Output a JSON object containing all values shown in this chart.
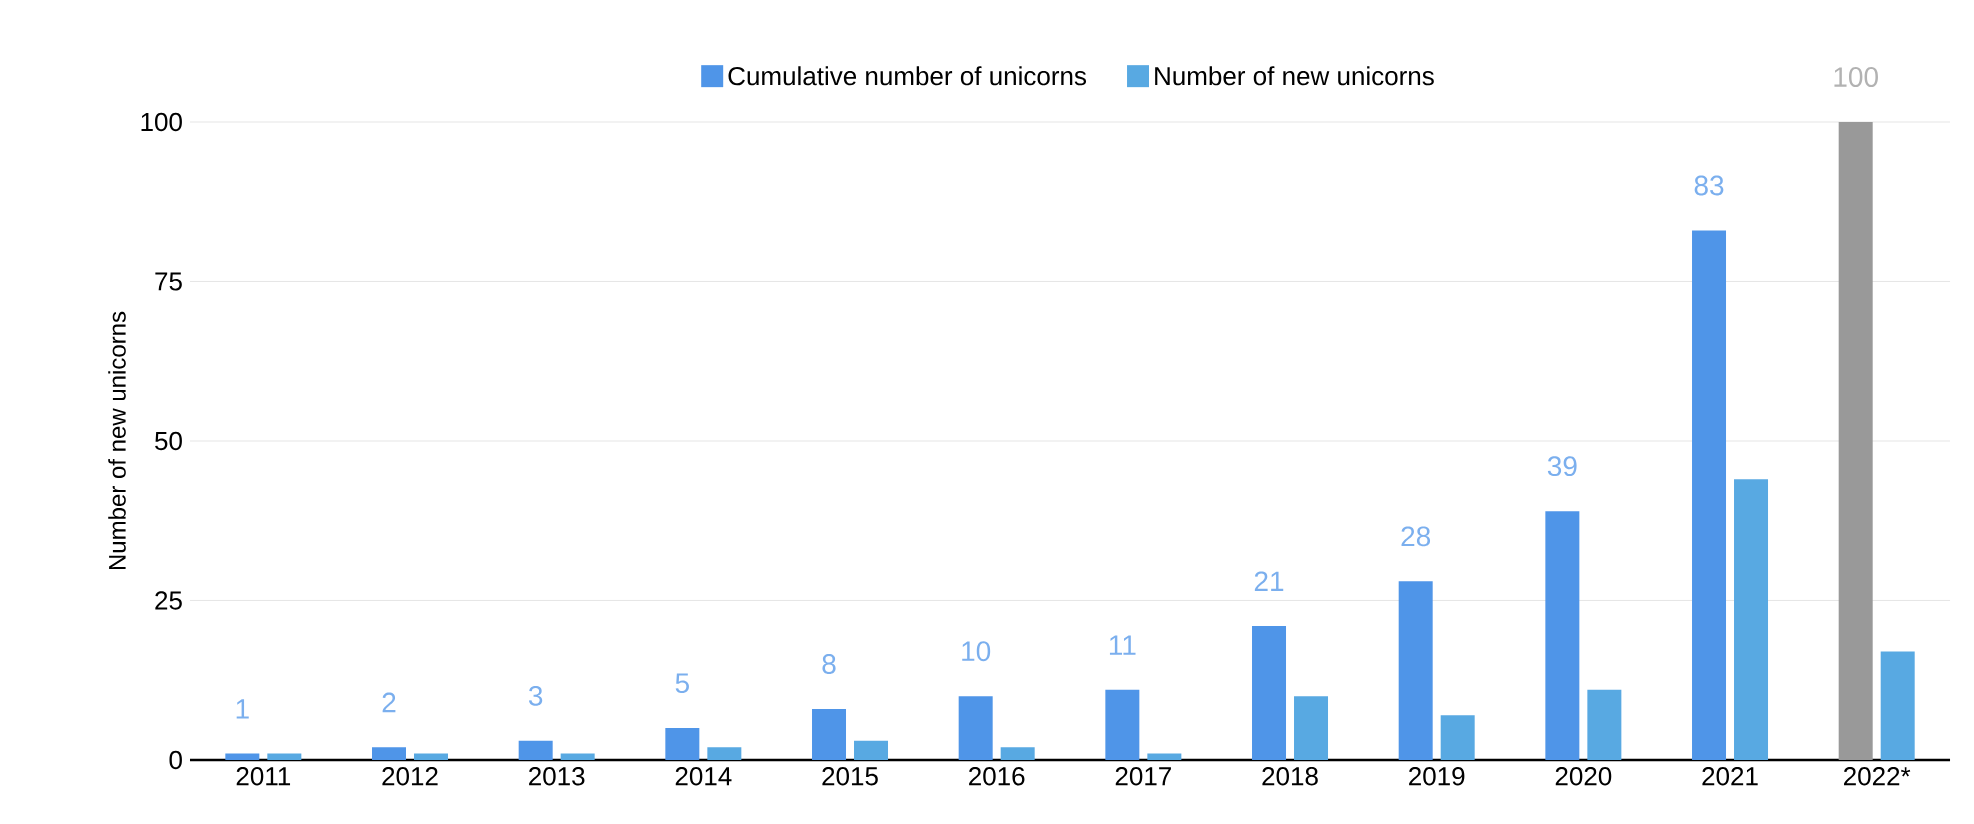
{
  "chart_data": {
    "type": "bar",
    "ylabel": "Number of new unicorns",
    "categories": [
      "2011",
      "2012",
      "2013",
      "2014",
      "2015",
      "2016",
      "2017",
      "2018",
      "2019",
      "2020",
      "2021",
      "2022*"
    ],
    "series": [
      {
        "name": "Cumulative number of unicorns",
        "color": "#4f95e8",
        "colors": [
          "#4f95e8",
          "#4f95e8",
          "#4f95e8",
          "#4f95e8",
          "#4f95e8",
          "#4f95e8",
          "#4f95e8",
          "#4f95e8",
          "#4f95e8",
          "#4f95e8",
          "#4f95e8",
          "#999999"
        ],
        "values": [
          1,
          2,
          3,
          5,
          8,
          10,
          11,
          21,
          28,
          39,
          83,
          100
        ],
        "value_labels": [
          "1",
          "2",
          "3",
          "5",
          "8",
          "10",
          "11",
          "21",
          "28",
          "39",
          "83",
          "100"
        ]
      },
      {
        "name": "Number of new unicorns",
        "color": "#58a9e2",
        "values": [
          1,
          1,
          1,
          2,
          3,
          2,
          1,
          10,
          7,
          11,
          44,
          17
        ]
      }
    ],
    "ylim": [
      0,
      100
    ],
    "yticks": [
      0,
      25,
      50,
      75,
      100
    ],
    "grid": "y",
    "legend": "top"
  }
}
